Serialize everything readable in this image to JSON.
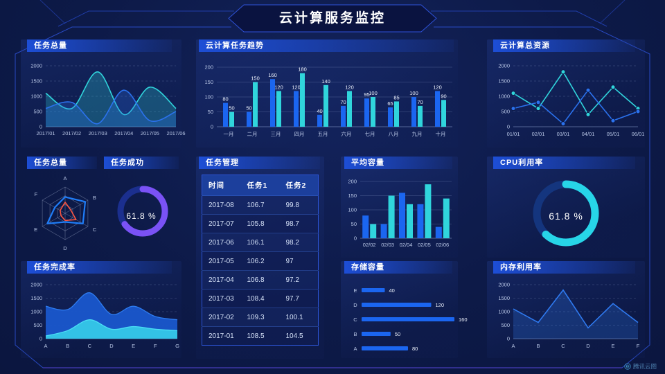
{
  "app": {
    "title": "云计算服务监控",
    "watermark": "腾讯云图"
  },
  "colors": {
    "background": "#0d1a48",
    "frame_line": "#2e52d8",
    "panel_header": "#1d4ed6",
    "bar_blue": "#1b66f0",
    "bar_cyan": "#30d5dc",
    "line_blue": "#2b72ee",
    "line_cyan": "#30d5dc",
    "donut_purple": "#7a52f5",
    "donut_cyan": "#27d5e8",
    "radar_blue": "#1f7df8",
    "radar_red": "#ff5540"
  },
  "chart_data": [
    {
      "id": "task_total_area",
      "type": "area",
      "title": "任务总量",
      "x": [
        "2017/01",
        "2017/02",
        "2017/03",
        "2017/04",
        "2017/05",
        "2017/06"
      ],
      "ylim": [
        0,
        2000
      ],
      "yticks": [
        0,
        500,
        1000,
        1500,
        2000
      ],
      "series": [
        {
          "color": "#30d5dc",
          "values": [
            1100,
            600,
            1800,
            400,
            1300,
            600
          ]
        },
        {
          "color": "#2b72ee",
          "values": [
            600,
            800,
            100,
            1200,
            200,
            500
          ]
        }
      ]
    },
    {
      "id": "task_trend",
      "type": "bar",
      "title": "云计算任务趋势",
      "categories": [
        "一月",
        "二月",
        "三月",
        "四月",
        "五月",
        "六月",
        "七月",
        "八月",
        "九月",
        "十月"
      ],
      "ylim": [
        0,
        200
      ],
      "yticks": [
        0,
        50,
        100,
        150,
        200
      ],
      "series": [
        {
          "color": "#1b66f0",
          "values": [
            80,
            50,
            160,
            120,
            40,
            70,
            95,
            65,
            100,
            120
          ]
        },
        {
          "color": "#30d5dc",
          "values": [
            50,
            150,
            120,
            180,
            140,
            120,
            100,
            85,
            70,
            90
          ]
        }
      ]
    },
    {
      "id": "cloud_resources",
      "type": "line",
      "title": "云计算总资源",
      "x": [
        "01/01",
        "02/01",
        "03/01",
        "04/01",
        "05/01",
        "06/01"
      ],
      "ylim": [
        0,
        2000
      ],
      "yticks": [
        0,
        500,
        1000,
        1500,
        2000
      ],
      "series": [
        {
          "color": "#30d5dc",
          "values": [
            1100,
            600,
            1800,
            400,
            1300,
            600
          ]
        },
        {
          "color": "#2b72ee",
          "values": [
            600,
            800,
            100,
            1200,
            200,
            500
          ]
        }
      ]
    },
    {
      "id": "task_radar",
      "type": "radar",
      "title": "任务总量",
      "axes": [
        "A",
        "B",
        "C",
        "D",
        "E",
        "F"
      ],
      "max": 100,
      "series": [
        {
          "color": "#1f7df8",
          "values": [
            62,
            88,
            78,
            33,
            78,
            45
          ]
        },
        {
          "color": "#ff5540",
          "values": [
            42,
            25,
            48,
            27,
            18,
            22
          ]
        }
      ]
    },
    {
      "id": "task_success",
      "type": "donut",
      "title": "任务成功",
      "label": "61.8 %",
      "value": 61.8,
      "sweep": 0.65,
      "color": "#7a52f5",
      "track": "#1b2f8e"
    },
    {
      "id": "task_table",
      "type": "table",
      "title": "任务管理",
      "columns": [
        "时间",
        "任务1",
        "任务2"
      ],
      "rows": [
        [
          "2017-08",
          "106.7",
          "99.8"
        ],
        [
          "2017-07",
          "105.8",
          "98.7"
        ],
        [
          "2017-06",
          "106.1",
          "98.2"
        ],
        [
          "2017-05",
          "106.2",
          "97"
        ],
        [
          "2017-04",
          "106.8",
          "97.2"
        ],
        [
          "2017-03",
          "108.4",
          "97.7"
        ],
        [
          "2017-02",
          "109.3",
          "100.1"
        ],
        [
          "2017-01",
          "108.5",
          "104.5"
        ]
      ]
    },
    {
      "id": "avg_capacity",
      "type": "bar",
      "title": "平均容量",
      "categories": [
        "02/02",
        "02/03",
        "02/04",
        "02/05",
        "02/06"
      ],
      "ylim": [
        0,
        200
      ],
      "yticks": [
        0,
        50,
        100,
        150,
        200
      ],
      "series": [
        {
          "color": "#1b66f0",
          "values": [
            80,
            50,
            160,
            120,
            40
          ]
        },
        {
          "color": "#30d5dc",
          "values": [
            50,
            150,
            120,
            190,
            140
          ]
        }
      ]
    },
    {
      "id": "cpu",
      "type": "donut",
      "title": "CPU利用率",
      "label": "61.8 %",
      "value": 61.8,
      "sweep": 0.62,
      "color": "#27d5e8",
      "track": "#14357e"
    },
    {
      "id": "completion",
      "type": "area",
      "title": "任务完成率",
      "x": [
        "A",
        "B",
        "C",
        "D",
        "E",
        "F",
        "G"
      ],
      "ylim": [
        0,
        2000
      ],
      "yticks": [
        0,
        500,
        1000,
        1500,
        2000
      ],
      "series": [
        {
          "color": "#1a57cc",
          "edge": "#2e7cf0",
          "values": [
            1200,
            1080,
            1700,
            900,
            1200,
            820,
            700
          ]
        },
        {
          "color": "#35c8e8",
          "edge": "#4adef5",
          "values": [
            100,
            300,
            700,
            350,
            450,
            350,
            300
          ]
        }
      ]
    },
    {
      "id": "storage",
      "type": "hbar",
      "title": "存储容量",
      "categories": [
        "E",
        "D",
        "C",
        "B",
        "A"
      ],
      "values": [
        40,
        120,
        160,
        50,
        80
      ],
      "xmax": 160,
      "color": "#1b66f0"
    },
    {
      "id": "memory",
      "type": "line_area",
      "title": "内存利用率",
      "x": [
        "A",
        "B",
        "C",
        "D",
        "E",
        "F"
      ],
      "ylim": [
        0,
        2000
      ],
      "yticks": [
        0,
        500,
        1000,
        1500,
        2000
      ],
      "series": [
        {
          "color": "#2f7af0",
          "values": [
            1100,
            600,
            1800,
            400,
            1300,
            600
          ]
        }
      ]
    }
  ]
}
